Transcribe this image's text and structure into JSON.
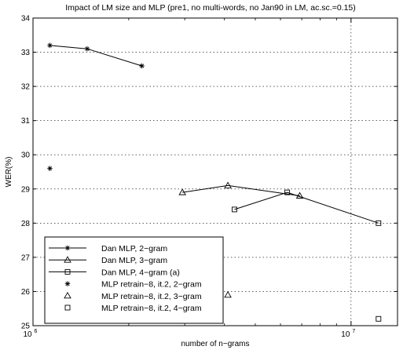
{
  "chart_data": {
    "type": "line",
    "title": "Impact of LM size and MLP (pre1, no multi-words, no Jan90 in LM, ac.sc.=0.15)",
    "xlabel": "number of n−grams",
    "ylabel": "WER(%)",
    "xscale": "log",
    "xlim": [
      1000000,
      14000000
    ],
    "ylim": [
      25,
      34
    ],
    "x_ticks": [
      {
        "base": "10",
        "exp": "6"
      },
      {
        "base": "10",
        "exp": "7"
      }
    ],
    "y_ticks": [
      "25",
      "26",
      "27",
      "28",
      "29",
      "30",
      "31",
      "32",
      "33",
      "34"
    ],
    "grid": true,
    "legend_position": "bottom-left",
    "series": [
      {
        "name": "Dan MLP, 2−gram",
        "marker": "asterisk",
        "line": true,
        "x": [
          1130000,
          1480000,
          2200000
        ],
        "y": [
          33.2,
          33.1,
          32.6
        ]
      },
      {
        "name": "Dan MLP, 3−gram",
        "marker": "triangle",
        "line": true,
        "x": [
          2950000,
          4100000,
          6900000
        ],
        "y": [
          28.9,
          29.1,
          28.8
        ]
      },
      {
        "name": "Dan MLP, 4−gram (a)",
        "marker": "square",
        "line": true,
        "x": [
          4300000,
          6300000,
          12200000
        ],
        "y": [
          28.4,
          28.9,
          28.0
        ]
      },
      {
        "name": "MLP retrain−8, it.2, 2−gram",
        "marker": "asterisk",
        "line": false,
        "x": [
          1130000
        ],
        "y": [
          29.6
        ]
      },
      {
        "name": "MLP retrain−8, it.2, 3−gram",
        "marker": "triangle",
        "line": false,
        "x": [
          4100000
        ],
        "y": [
          25.9
        ]
      },
      {
        "name": "MLP retrain−8, it.2, 4−gram",
        "marker": "square",
        "line": false,
        "x": [
          12200000
        ],
        "y": [
          25.2
        ]
      }
    ]
  }
}
